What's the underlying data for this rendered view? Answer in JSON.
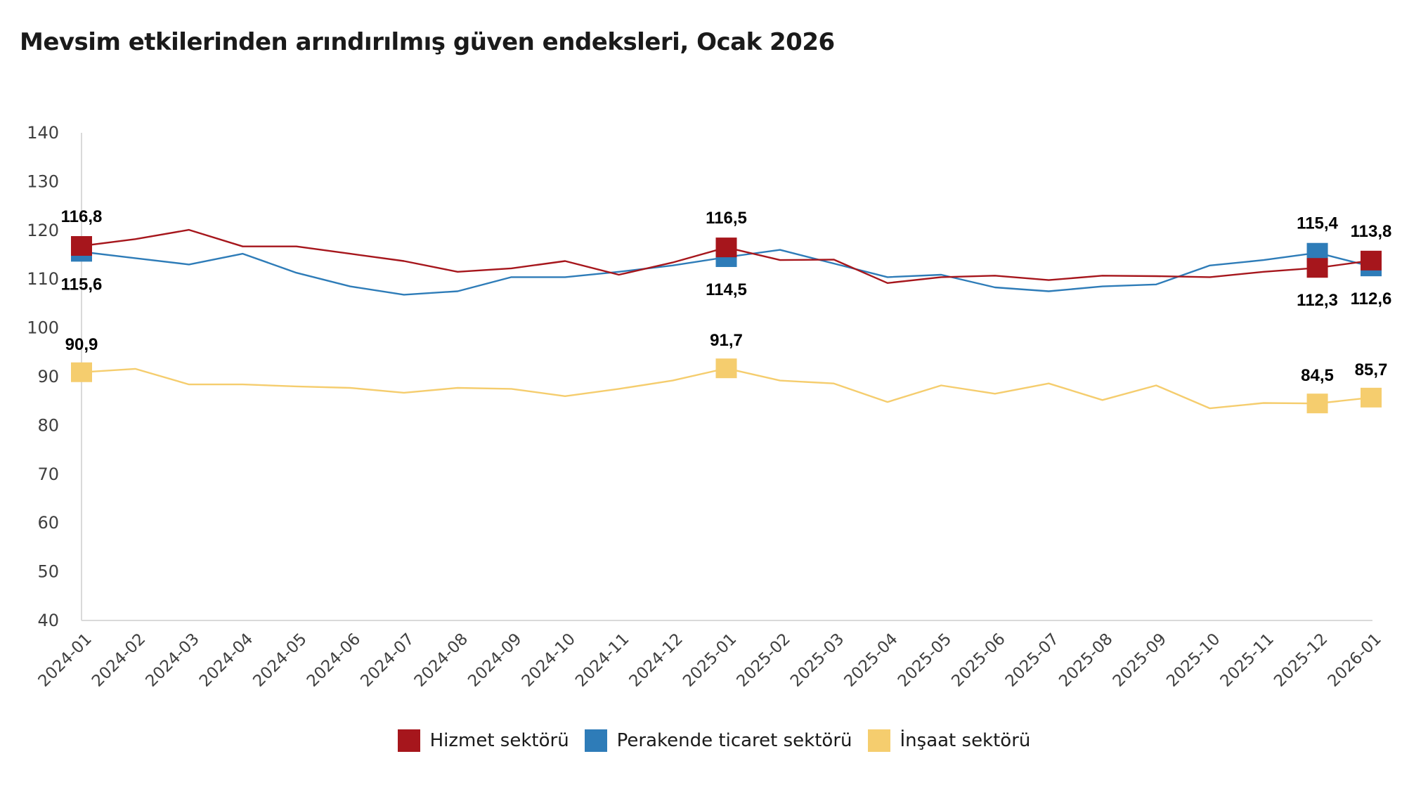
{
  "chart_data": {
    "type": "line",
    "title": "Mevsim etkilerinden arındırılmış güven endeksleri, Ocak 2026",
    "xlabel": "",
    "ylabel": "",
    "ylim": [
      40,
      140
    ],
    "yticks": [
      "140",
      "130",
      "120",
      "110",
      "100",
      "90",
      "80",
      "70",
      "60",
      "50",
      "40"
    ],
    "grid": false,
    "legend_position": "bottom",
    "categories": [
      "2024-01",
      "2024-02",
      "2024-03",
      "2024-04",
      "2024-05",
      "2024-06",
      "2024-07",
      "2024-08",
      "2024-09",
      "2024-10",
      "2024-11",
      "2024-12",
      "2025-01",
      "2025-02",
      "2025-03",
      "2025-04",
      "2025-05",
      "2025-06",
      "2025-07",
      "2025-08",
      "2025-09",
      "2025-10",
      "2025-11",
      "2025-12",
      "2026-01"
    ],
    "series": [
      {
        "name": "Hizmet sektörü",
        "color": "#A6161C",
        "values": [
          116.8,
          118.2,
          120.1,
          116.7,
          116.7,
          115.2,
          113.7,
          111.5,
          112.2,
          113.7,
          110.9,
          113.4,
          116.5,
          113.9,
          114.0,
          109.2,
          110.4,
          110.7,
          109.8,
          110.7,
          110.6,
          110.4,
          111.5,
          112.3,
          113.8
        ],
        "labeled_points": [
          {
            "index": 0,
            "label": "116,8",
            "pos": "above"
          },
          {
            "index": 12,
            "label": "116,5",
            "pos": "above"
          },
          {
            "index": 23,
            "label": "112,3",
            "pos": "below"
          },
          {
            "index": 24,
            "label": "113,8",
            "pos": "above"
          }
        ]
      },
      {
        "name": "Perakende ticaret sektörü",
        "color": "#2E7CB8",
        "values": [
          115.6,
          114.3,
          113.0,
          115.2,
          111.3,
          108.5,
          106.8,
          107.5,
          110.4,
          110.4,
          111.5,
          112.8,
          114.5,
          116.0,
          113.2,
          110.4,
          110.9,
          108.3,
          107.5,
          108.5,
          108.9,
          112.8,
          113.9,
          115.4,
          112.6
        ],
        "labeled_points": [
          {
            "index": 0,
            "label": "115,6",
            "pos": "below"
          },
          {
            "index": 12,
            "label": "114,5",
            "pos": "below"
          },
          {
            "index": 23,
            "label": "115,4",
            "pos": "above"
          },
          {
            "index": 24,
            "label": "112,6",
            "pos": "below"
          }
        ]
      },
      {
        "name": "İnşaat sektörü",
        "color": "#F5CD6E",
        "values": [
          90.9,
          91.6,
          88.4,
          88.4,
          88.0,
          87.7,
          86.7,
          87.7,
          87.5,
          86.0,
          87.5,
          89.2,
          91.7,
          89.2,
          88.6,
          84.8,
          88.2,
          86.5,
          88.6,
          85.2,
          88.2,
          83.5,
          84.6,
          84.5,
          85.7
        ],
        "labeled_points": [
          {
            "index": 0,
            "label": "90,9",
            "pos": "above"
          },
          {
            "index": 12,
            "label": "91,7",
            "pos": "above"
          },
          {
            "index": 23,
            "label": "84,5",
            "pos": "above"
          },
          {
            "index": 24,
            "label": "85,7",
            "pos": "above"
          }
        ]
      }
    ]
  }
}
